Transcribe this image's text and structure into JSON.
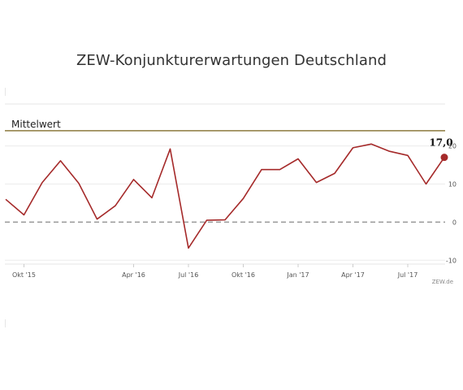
{
  "chart_data": {
    "type": "line",
    "title": "ZEW-Konjunkturerwartungen Deutschland",
    "xlabel": "",
    "ylabel": "",
    "x_tick_labels": [
      "Okt '15",
      "Apr '16",
      "Jul '16",
      "Okt '16",
      "Jan '17",
      "Apr '17",
      "Jul '17"
    ],
    "x_tick_indices": [
      1,
      7,
      10,
      13,
      16,
      19,
      22
    ],
    "y_ticks": [
      20,
      10,
      0,
      -10
    ],
    "y_tick_labels": [
      "20",
      "10",
      "0",
      "-10"
    ],
    "ylim": [
      -11,
      31
    ],
    "series": [
      {
        "values": [
          6.0,
          1.9,
          10.4,
          16.1,
          10.2,
          0.8,
          4.3,
          11.2,
          6.4,
          19.2,
          -6.8,
          0.5,
          0.6,
          6.2,
          13.8,
          13.8,
          16.6,
          10.4,
          12.8,
          19.5,
          20.5,
          18.6,
          17.5,
          10.0,
          17.0
        ],
        "color": "#a52a2a"
      }
    ],
    "reference_lines": [
      {
        "label": "Mittelwert",
        "value": 24.0,
        "color": "#8c7a3e"
      },
      {
        "label": "",
        "value": 0,
        "color": "#999999",
        "style": "dashed"
      }
    ],
    "last_value_label": "17,0",
    "grid": true,
    "source": "ZEW.de"
  }
}
